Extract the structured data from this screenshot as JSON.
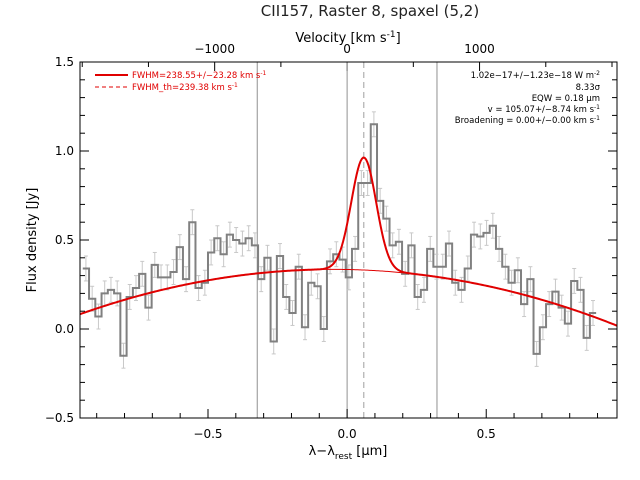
{
  "chart_data": {
    "type": "line",
    "title": "CII157, Raster 8, spaxel (5,2)",
    "xlabel": "λ−λ",
    "xlabel_sub": "rest",
    "xlabel_unit": " [μm]",
    "ylabel": "Flux density [Jy]",
    "top_axis_label": "Velocity [km s",
    "top_axis_label_sup": "-1",
    "top_axis_label_end": "]",
    "xlim": [
      -0.96,
      0.97
    ],
    "ylim": [
      -0.5,
      1.5
    ],
    "x_ticks": [
      -0.5,
      0.0,
      0.5
    ],
    "x_tick_labels": [
      "−0.5",
      "0.0",
      "0.5"
    ],
    "y_ticks": [
      -0.5,
      0.0,
      0.5,
      1.0,
      1.5
    ],
    "y_tick_labels": [
      "−0.5",
      "0.0",
      "0.5",
      "1.0",
      "1.5"
    ],
    "top_ticks_x": [
      -0.476,
      0.0,
      0.476
    ],
    "top_tick_labels": [
      "−1000",
      "0",
      "1000"
    ],
    "vertical_lines": [
      -0.323,
      0.0,
      0.323
    ],
    "center_line": 0.06,
    "legend_position": "top-left",
    "legend": [
      {
        "label": "FWHM=238.55+/−23.28 km s",
        "sup": "-1",
        "style": "solid",
        "color": "#e00000"
      },
      {
        "label": "FWHM_th=239.38 km s",
        "sup": "-1",
        "style": "dashed",
        "color": "#e00000"
      }
    ],
    "annotations": [
      {
        "text": "1.02e−17+/−1.23e−18 W m",
        "sup": "-2"
      },
      {
        "text": "8.33σ",
        "sup": ""
      },
      {
        "text": "EQW = 0.18 μm",
        "sup": ""
      },
      {
        "text": "v = 105.07+/−8.74 km s",
        "sup": "-1"
      },
      {
        "text": "Broadening = 0.00+/−0.00 km s",
        "sup": "-1"
      }
    ],
    "spectrum_step_width": 0.0225,
    "spectrum_x0": -0.95,
    "spectrum_y": [
      0.34,
      0.17,
      0.07,
      0.2,
      0.22,
      0.2,
      -0.15,
      0.18,
      0.23,
      0.31,
      0.12,
      0.36,
      0.29,
      0.29,
      0.32,
      0.46,
      0.28,
      0.6,
      0.23,
      0.26,
      0.43,
      0.51,
      0.42,
      0.53,
      0.5,
      0.48,
      0.51,
      0.47,
      0.28,
      0.4,
      -0.07,
      0.41,
      0.18,
      0.09,
      0.35,
      0.01,
      0.26,
      0.24,
      0.0,
      0.38,
      0.42,
      0.39,
      0.29,
      0.45,
      0.82,
      0.82,
      1.15,
      0.72,
      0.62,
      0.47,
      0.49,
      0.31,
      0.47,
      0.18,
      0.22,
      0.45,
      0.35,
      0.35,
      0.48,
      0.26,
      0.22,
      0.34,
      0.53,
      0.52,
      0.54,
      0.58,
      0.45,
      0.35,
      0.26,
      0.33,
      0.14,
      0.28,
      -0.14,
      0.01,
      0.14,
      0.21,
      0.12,
      0.03,
      0.27,
      0.22,
      -0.05,
      0.09
    ],
    "spectrum_err": 0.07,
    "continuum": {
      "peak": 0.335,
      "center": -0.05,
      "curvature": 0.95
    },
    "gaussian": {
      "amplitude": 0.632,
      "center": 0.06,
      "fwhm": 0.105
    },
    "colors": {
      "spectrum": "#808080",
      "error": "#c8c8c8",
      "fit": "#e00000",
      "axes": "#000000",
      "vlines": "#909090"
    }
  }
}
